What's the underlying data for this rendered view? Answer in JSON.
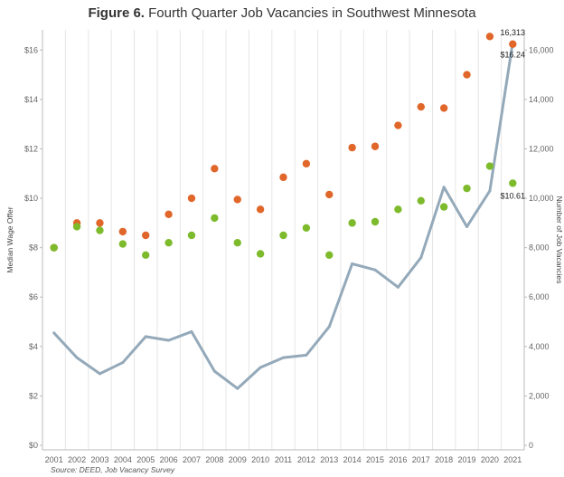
{
  "title": {
    "bold": "Figure 6.",
    "rest": " Fourth Quarter Job Vacancies in  Southwest Minnesota"
  },
  "source": "Source: DEED, Job Vacancy Survey",
  "colors": {
    "orange": "#e0662a",
    "green": "#7dbb2c",
    "line": "#94a9b9",
    "grid": "#e6e6e6"
  },
  "chart_data": {
    "type": "line",
    "title": "Figure 6. Fourth Quarter Job Vacancies in  Southwest Minnesota",
    "source": "Source: DEED, Job Vacancy Survey",
    "categories": [
      "2001",
      "2002",
      "2003",
      "2004",
      "2005",
      "2006",
      "2007",
      "2008",
      "2009",
      "2010",
      "2011",
      "2012",
      "2013",
      "2014",
      "2015",
      "2016",
      "2017",
      "2018",
      "2019",
      "2020",
      "2021"
    ],
    "ylabel_left": "Median Wage Offer",
    "ylabel_right": "Number of Job Vacancies",
    "ylim_left": [
      0,
      17
    ],
    "ylim_right": [
      0,
      17000
    ],
    "yticks_left": [
      "$0",
      "$2",
      "$4",
      "$6",
      "$8",
      "$10",
      "$12",
      "$14",
      "$16"
    ],
    "yticks_right": [
      "0",
      "2,000",
      "4,000",
      "6,000",
      "8,000",
      "10,000",
      "12,000",
      "14,000",
      "16,000"
    ],
    "grid": "vertical",
    "series": [
      {
        "kind": "scatter",
        "axis": "left",
        "color": "#e0662a",
        "values": [
          8.0,
          9.0,
          9.0,
          8.65,
          8.5,
          9.35,
          10.0,
          11.2,
          9.95,
          9.55,
          10.85,
          11.4,
          10.15,
          12.05,
          12.1,
          12.95,
          13.7,
          13.65,
          15.0,
          16.55,
          16.24
        ]
      },
      {
        "kind": "scatter",
        "axis": "left",
        "color": "#7dbb2c",
        "values": [
          8.0,
          8.85,
          8.7,
          8.15,
          7.7,
          8.2,
          8.5,
          9.2,
          8.2,
          7.75,
          8.5,
          8.8,
          7.7,
          9.0,
          9.05,
          9.55,
          9.9,
          9.65,
          10.4,
          11.3,
          10.61
        ]
      },
      {
        "kind": "line",
        "axis": "right",
        "color": "#94a9b9",
        "values": [
          4550,
          3550,
          2900,
          3350,
          4400,
          4250,
          4600,
          3000,
          2300,
          3150,
          3550,
          3650,
          4800,
          7350,
          7100,
          6400,
          7600,
          10450,
          8850,
          10300,
          16313
        ]
      }
    ],
    "annotations": [
      "16,313",
      "$16.24",
      "$10.61"
    ]
  }
}
